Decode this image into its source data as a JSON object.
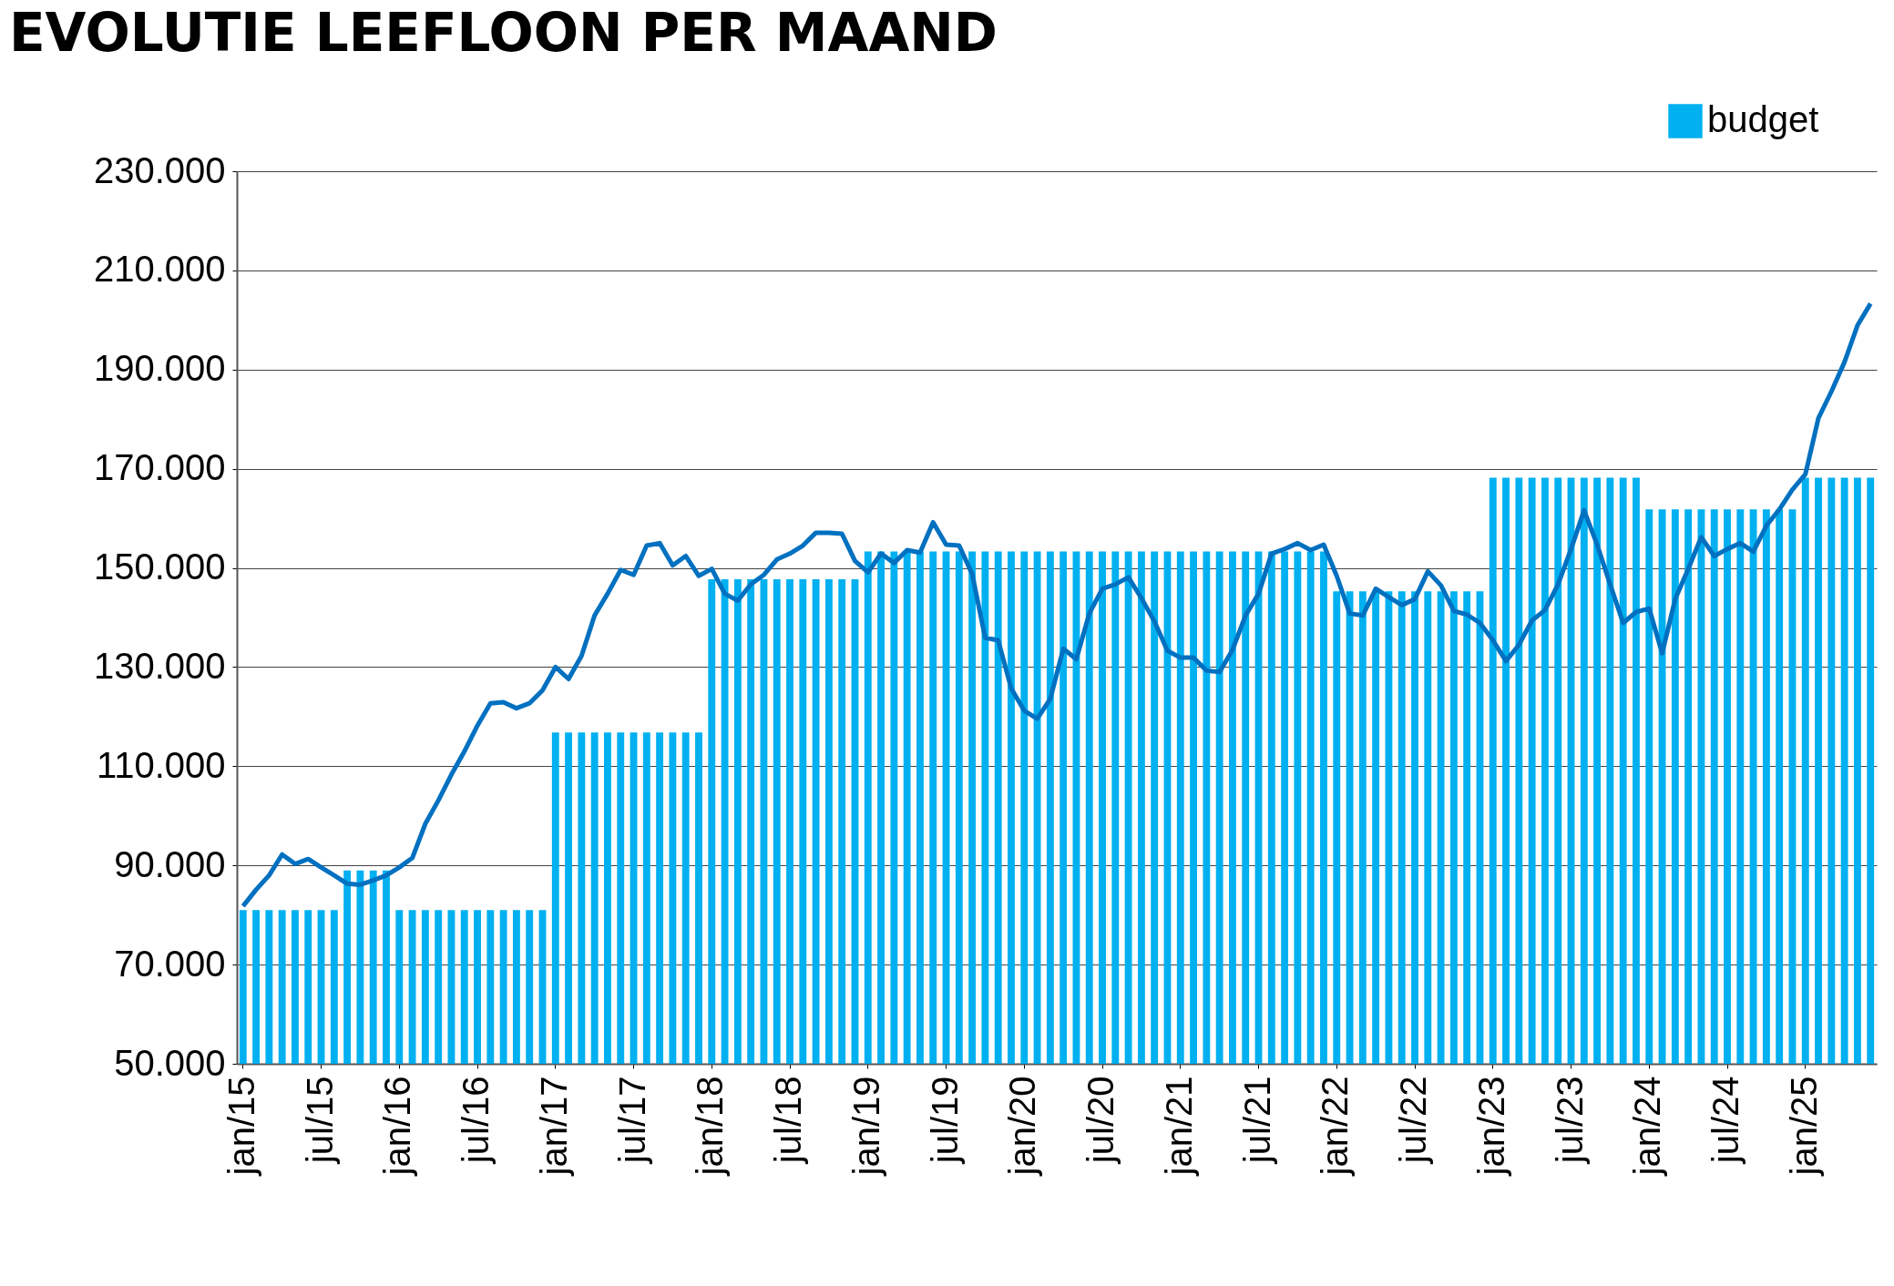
{
  "chart_data": {
    "type": "bar",
    "title": "EVOLUTIE LEEFLOON PER MAAND",
    "categories": [
      "jan/15",
      null,
      null,
      null,
      null,
      null,
      "jul/15",
      null,
      null,
      null,
      null,
      null,
      "jan/16",
      null,
      null,
      null,
      null,
      null,
      "jul/16",
      null,
      null,
      null,
      null,
      null,
      "jan/17",
      null,
      null,
      null,
      null,
      null,
      "jul/17",
      null,
      null,
      null,
      null,
      null,
      "jan/18",
      null,
      null,
      null,
      null,
      null,
      "jul/18",
      null,
      null,
      null,
      null,
      null,
      "jan/19",
      null,
      null,
      null,
      null,
      null,
      "jul/19",
      null,
      null,
      null,
      null,
      null,
      "jan/20",
      null,
      null,
      null,
      null,
      null,
      "jul/20",
      null,
      null,
      null,
      null,
      null,
      "jan/21",
      null,
      null,
      null,
      null,
      null,
      "jul/21",
      null,
      null,
      null,
      null,
      null,
      "jan/22",
      null,
      null,
      null,
      null,
      null,
      "jul/22",
      null,
      null,
      null,
      null,
      null,
      "jan/23",
      null,
      null,
      null,
      null,
      null,
      "jul/23",
      null,
      null,
      null,
      null,
      null,
      "jan/24",
      null,
      null,
      null,
      null,
      null,
      "jul/24",
      null,
      null,
      null,
      null,
      null,
      "jan/25",
      null,
      null,
      null,
      null,
      null
    ],
    "series": [
      {
        "name": "budget",
        "color": "#00b0f0",
        "values": [
          81000,
          81000,
          81000,
          81000,
          81000,
          81000,
          81000,
          81000,
          89000,
          89000,
          89000,
          89000,
          81000,
          81000,
          81000,
          81000,
          81000,
          81000,
          81000,
          81000,
          81000,
          81000,
          81000,
          81000,
          116800,
          116800,
          116800,
          116800,
          116800,
          116800,
          116800,
          116800,
          116800,
          116800,
          116800,
          116800,
          147700,
          147700,
          147700,
          147700,
          147700,
          147700,
          147700,
          147700,
          147700,
          147700,
          147700,
          147700,
          153300,
          153300,
          153300,
          153300,
          153300,
          153300,
          153300,
          153300,
          153300,
          153300,
          153300,
          153300,
          153300,
          153300,
          153300,
          153300,
          153300,
          153300,
          153300,
          153300,
          153300,
          153300,
          153300,
          153300,
          153300,
          153300,
          153300,
          153300,
          153300,
          153300,
          153300,
          153300,
          153300,
          153300,
          153300,
          153300,
          145300,
          145300,
          145300,
          145300,
          145300,
          145300,
          145300,
          145300,
          145300,
          145300,
          145300,
          145300,
          168200,
          168200,
          168200,
          168200,
          168200,
          168200,
          168200,
          168200,
          168200,
          168200,
          168200,
          168200,
          161800,
          161800,
          161800,
          161800,
          161800,
          161800,
          161800,
          161800,
          161800,
          161800,
          161800,
          161800,
          168200,
          168200,
          168200,
          168200,
          168200,
          168200
        ]
      },
      {
        "type": "line",
        "color": "#0070c0",
        "values": [
          81800,
          85100,
          88000,
          92200,
          90300,
          91300,
          89600,
          88000,
          86300,
          86100,
          87000,
          88000,
          89600,
          91500,
          98400,
          103100,
          108300,
          113000,
          118200,
          122700,
          122900,
          121700,
          122700,
          125300,
          130000,
          127600,
          132300,
          140400,
          144800,
          149600,
          148600,
          154500,
          155000,
          150500,
          152400,
          148400,
          149800,
          144800,
          143400,
          146700,
          148600,
          151700,
          152900,
          154500,
          157100,
          157100,
          156900,
          151400,
          149100,
          152900,
          151000,
          153600,
          153100,
          159200,
          154700,
          154500,
          148800,
          135900,
          135400,
          125700,
          121200,
          119600,
          123600,
          133700,
          131600,
          140800,
          145800,
          146700,
          148100,
          143900,
          139200,
          133300,
          131900,
          131900,
          129300,
          129000,
          133500,
          140400,
          144800,
          152900,
          153800,
          155000,
          153600,
          154700,
          148400,
          140800,
          140400,
          145800,
          144100,
          142500,
          143700,
          149300,
          146500,
          141300,
          140600,
          138900,
          135400,
          131200,
          134500,
          139400,
          141500,
          146700,
          153800,
          161600,
          154700,
          146700,
          138900,
          141100,
          141800,
          132800,
          143700,
          149800,
          156200,
          152400,
          153800,
          155000,
          153300,
          158500,
          161800,
          165800,
          168900,
          180200,
          185600,
          191500,
          198900,
          203300
        ]
      }
    ],
    "ylim": [
      50000,
      230000
    ],
    "yticks": [
      {
        "value": 50000,
        "label": "50.000"
      },
      {
        "value": 70000,
        "label": "70.000"
      },
      {
        "value": 90000,
        "label": "90.000"
      },
      {
        "value": 110000,
        "label": "110.000"
      },
      {
        "value": 130000,
        "label": "130.000"
      },
      {
        "value": 150000,
        "label": "150.000"
      },
      {
        "value": 170000,
        "label": "170.000"
      },
      {
        "value": 190000,
        "label": "190.000"
      },
      {
        "value": 210000,
        "label": "210.000"
      },
      {
        "value": 230000,
        "label": "230.000"
      }
    ],
    "grid": "y",
    "legend": "top right",
    "marker": "none",
    "line_style": "solid"
  }
}
